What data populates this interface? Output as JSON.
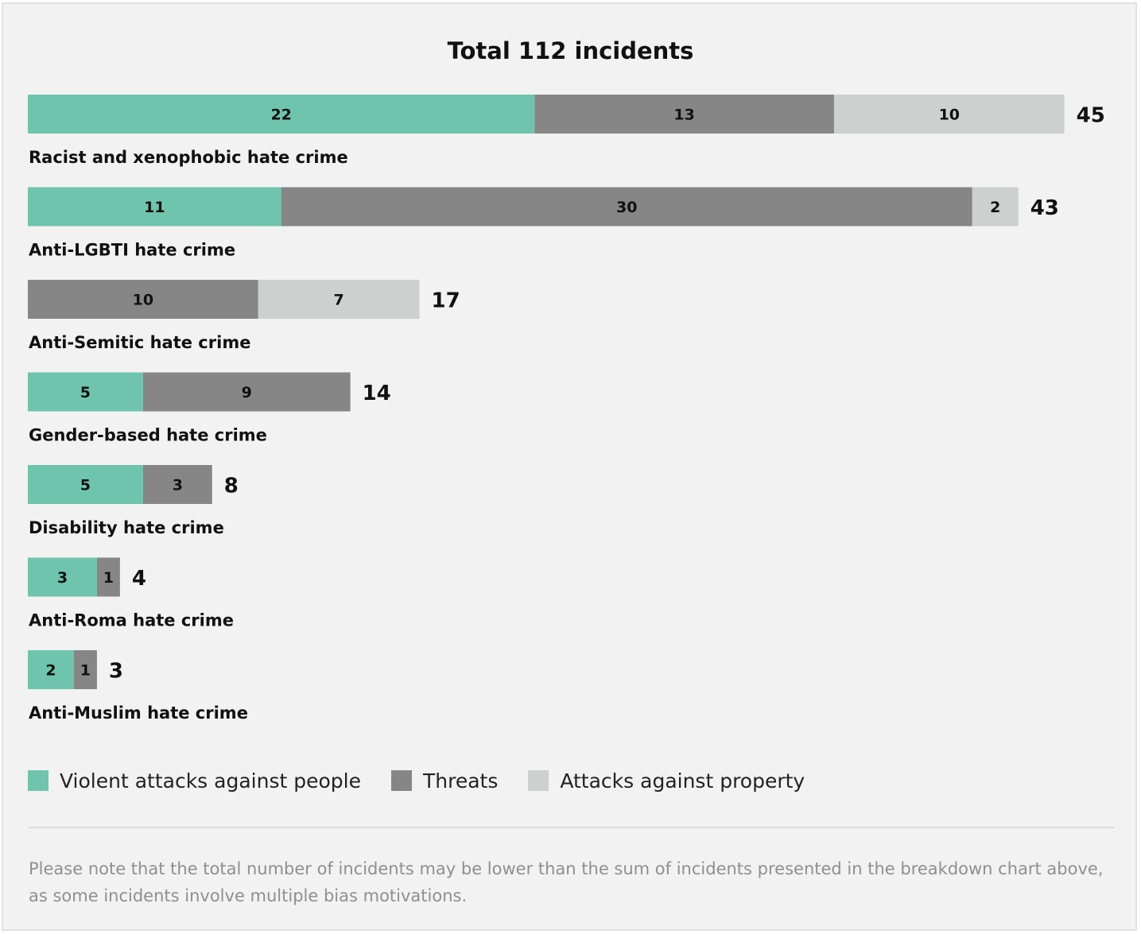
{
  "title": "Total 112 incidents",
  "colors": {
    "violent": "#6fc4ad",
    "threats": "#868686",
    "property": "#ccd0cf",
    "text": "#111111"
  },
  "legend": [
    {
      "key": "violent",
      "label": "Violent attacks against people"
    },
    {
      "key": "threats",
      "label": "Threats"
    },
    {
      "key": "property",
      "label": "Attacks against property"
    }
  ],
  "chart_data": {
    "type": "bar",
    "orientation": "horizontal",
    "stacked": true,
    "title": "Total 112 incidents",
    "categories": [
      "Racist and xenophobic hate crime",
      "Anti-LGBTI hate crime",
      "Anti-Semitic hate crime",
      "Gender-based hate crime",
      "Disability hate crime",
      "Anti-Roma hate crime",
      "Anti-Muslim hate crime"
    ],
    "series": [
      {
        "name": "Violent attacks against people",
        "key": "violent",
        "values": [
          22,
          11,
          0,
          5,
          5,
          3,
          2
        ]
      },
      {
        "name": "Threats",
        "key": "threats",
        "values": [
          13,
          30,
          10,
          9,
          3,
          1,
          1
        ]
      },
      {
        "name": "Attacks against property",
        "key": "property",
        "values": [
          10,
          2,
          7,
          0,
          0,
          0,
          0
        ]
      }
    ],
    "totals": [
      45,
      43,
      17,
      14,
      8,
      4,
      3
    ],
    "legend_position": "bottom-left",
    "grid": false
  },
  "note": "Please note that the total number of incidents may be lower than the sum of incidents presented in the breakdown chart above, as some incidents involve multiple bias motivations."
}
